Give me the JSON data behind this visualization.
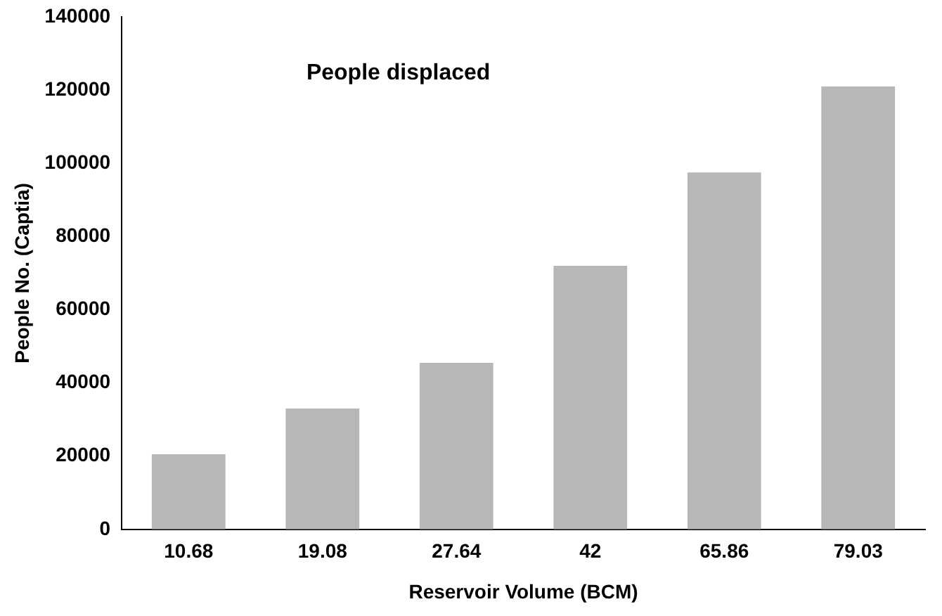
{
  "chart_data": {
    "type": "bar",
    "title": "People displaced",
    "xlabel": "Reservoir Volume (BCM)",
    "ylabel": "People No. (Captia)",
    "categories": [
      "10.68",
      "19.08",
      "27.64",
      "42",
      "65.86",
      "79.03"
    ],
    "values": [
      20500,
      33000,
      45500,
      72000,
      97500,
      121000
    ],
    "color": "#b7b7b7",
    "ylim": [
      0,
      140000
    ],
    "yticks": [
      0,
      20000,
      40000,
      60000,
      80000,
      100000,
      120000,
      140000
    ],
    "grid": false
  }
}
